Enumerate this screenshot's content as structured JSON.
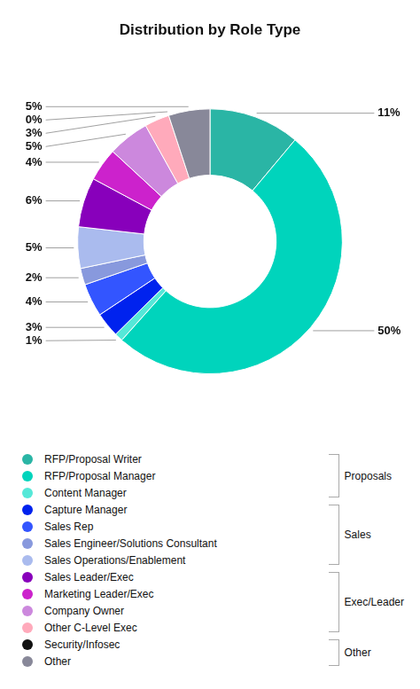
{
  "chart_data": {
    "type": "doughnut",
    "title": "Distribution by Role Type",
    "categories": [
      "RFP/Proposal Writer",
      "RFP/Proposal Manager",
      "Content Manager",
      "Capture Manager",
      "Sales Rep",
      "Sales Engineer/Solutions Consultant",
      "Sales Operations/Enablement",
      "Sales Leader/Exec",
      "Marketing Leader/Exec",
      "Company Owner",
      "Other C-Level Exec",
      "Security/Infosec",
      "Other"
    ],
    "values": [
      11,
      50,
      1,
      3,
      4,
      2,
      5,
      6,
      4,
      5,
      3,
      0,
      5
    ],
    "value_labels": [
      "11%",
      "50%",
      "1%",
      "3%",
      "4%",
      "2%",
      "5%",
      "6%",
      "4%",
      "5%",
      "3%",
      "0%",
      "5%"
    ],
    "colors": [
      "#2ab5a5",
      "#00d4bc",
      "#55e8d8",
      "#0022ee",
      "#3355ff",
      "#8899dd",
      "#aabbee",
      "#8800bb",
      "#cc22cc",
      "#cc88dd",
      "#ffaabb",
      "#111111",
      "#888899"
    ],
    "data_labels": true,
    "legend": "bottom",
    "groups": [
      {
        "label": "Proposals",
        "start_idx": 0,
        "end_idx": 2
      },
      {
        "label": "Sales",
        "start_idx": 3,
        "end_idx": 6
      },
      {
        "label": "Exec/Leader",
        "start_idx": 7,
        "end_idx": 10
      },
      {
        "label": "Other",
        "start_idx": 11,
        "end_idx": 12
      }
    ]
  }
}
